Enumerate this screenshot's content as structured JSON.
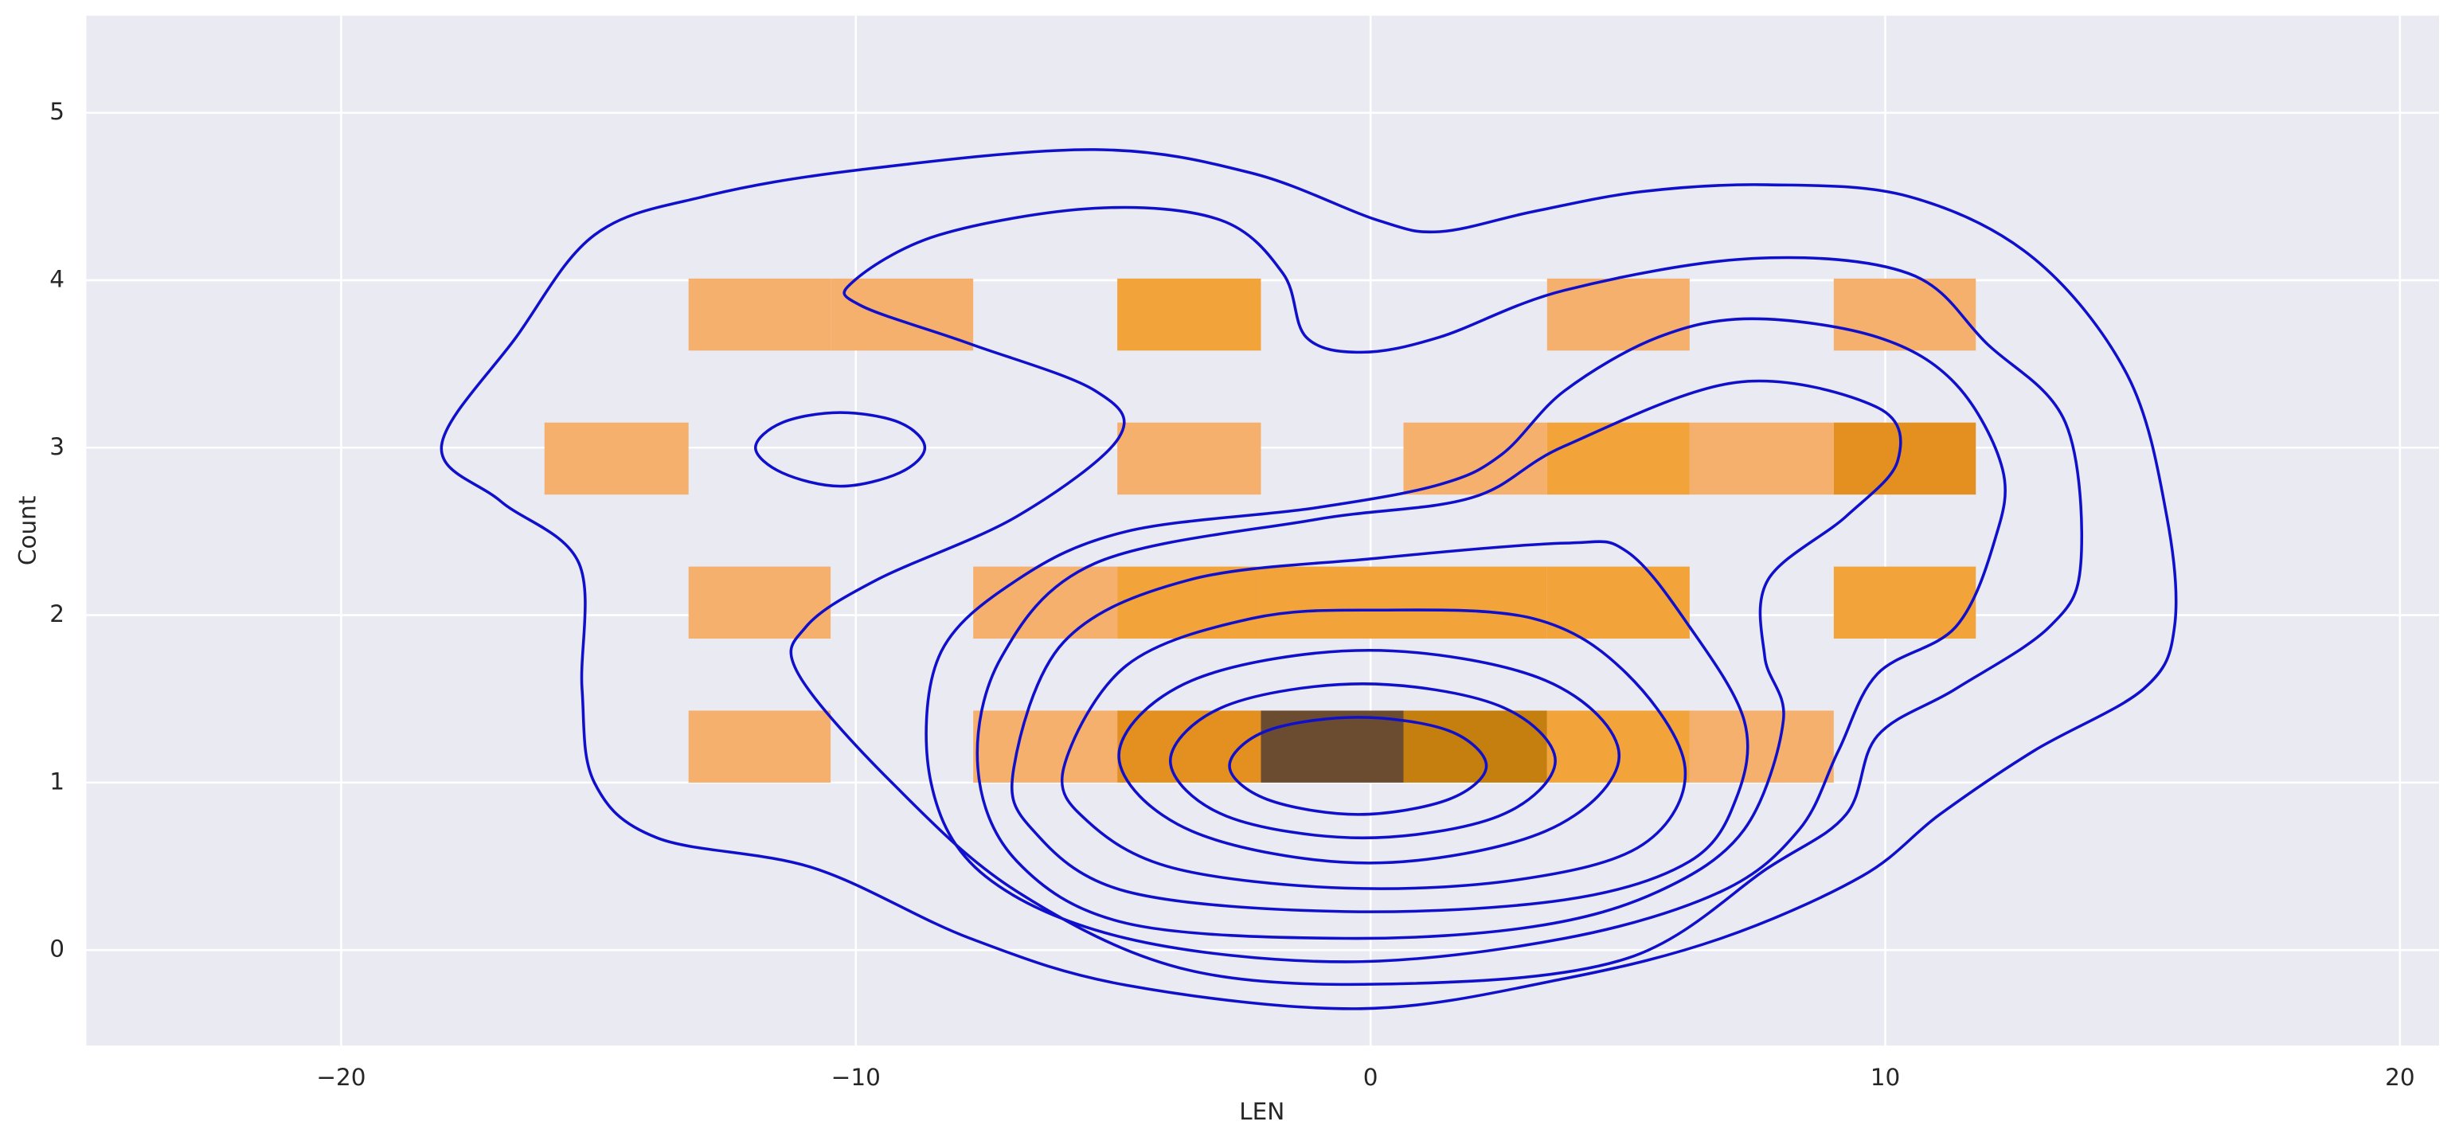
{
  "chart_data": {
    "type": "hist2d",
    "xlabel": "LEN",
    "ylabel": "Count",
    "xlim": [
      -24.95,
      20.76
    ],
    "ylim": [
      -0.57,
      5.58
    ],
    "xticks": [
      {
        "value": -20,
        "label": "−20"
      },
      {
        "value": -10,
        "label": "−10"
      },
      0,
      10,
      20
    ],
    "yticks": [
      0,
      1,
      2,
      3,
      4,
      5
    ],
    "grid": true,
    "xbins": [
      -16.05,
      -13.25,
      -10.49,
      -7.72,
      -4.92,
      -2.13,
      0.64,
      3.43,
      6.2,
      9.0,
      11.76
    ],
    "ybins": [
      1.0,
      1.43,
      1.86,
      2.29,
      2.72,
      3.15,
      3.58,
      4.01
    ],
    "counts": [
      [
        0,
        1,
        0,
        1,
        3,
        5,
        4,
        2,
        1,
        0
      ],
      [
        0,
        0,
        0,
        0,
        0,
        0,
        0,
        0,
        0,
        0
      ],
      [
        0,
        1,
        0,
        1,
        2,
        2,
        2,
        2,
        0,
        2
      ],
      [
        0,
        0,
        0,
        0,
        0,
        0,
        0,
        0,
        0,
        0
      ],
      [
        1,
        0,
        0,
        0,
        1,
        0,
        1,
        2,
        1,
        3
      ],
      [
        0,
        0,
        0,
        0,
        0,
        0,
        0,
        0,
        0,
        0
      ],
      [
        0,
        1,
        1,
        0,
        2,
        0,
        0,
        1,
        0,
        1
      ]
    ],
    "cmap": [
      "#f5b06e",
      "#f2a33a",
      "#e39020",
      "#c47f0e",
      "#6b4c30"
    ],
    "contour_color": "#1010cc",
    "contours": [
      {
        "x": [
          -18.05,
          -16.6,
          -15.08,
          -12.95,
          -9.91,
          -5.35,
          -2.31,
          0.12,
          1.34,
          3.16,
          5.29,
          7.72,
          10.46,
          12.89,
          14.71,
          15.47,
          15.62,
          15.02,
          12.89,
          11.06,
          9.54,
          6.81,
          3.77,
          -0.18,
          -4.74,
          -7.78,
          -10.82,
          -13.86,
          -15.08,
          -15.32,
          -15.38,
          -16.9
        ],
        "y": [
          3.01,
          3.66,
          4.27,
          4.5,
          4.66,
          4.78,
          4.64,
          4.36,
          4.29,
          4.41,
          4.53,
          4.57,
          4.5,
          4.13,
          3.43,
          2.59,
          1.93,
          1.56,
          1.19,
          0.81,
          0.44,
          0.07,
          -0.17,
          -0.35,
          -0.21,
          0.07,
          0.49,
          0.67,
          1.0,
          1.56,
          2.31,
          2.68
        ]
      },
      {
        "x": [
          -10.06,
          -8.39,
          -5.35,
          -2.92,
          -1.7,
          -1.25,
          -0.18,
          1.34,
          3.77,
          7.42,
          10.46,
          11.98,
          13.5,
          13.8,
          13.19,
          11.37,
          9.85,
          9.24,
          7.72,
          4.98,
          0.73,
          -3.53,
          -6.87,
          -9.3,
          -11.12,
          -10.97,
          -9.6,
          -6.87,
          -4.89,
          -5.35,
          -7.78,
          -9.91
        ],
        "y": [
          3.99,
          4.27,
          4.43,
          4.36,
          4.04,
          3.66,
          3.57,
          3.66,
          3.94,
          4.13,
          4.04,
          3.62,
          3.15,
          2.31,
          1.93,
          1.56,
          1.28,
          0.81,
          0.49,
          -0.05,
          -0.2,
          -0.12,
          0.35,
          1.0,
          1.65,
          1.93,
          2.21,
          2.59,
          3.06,
          3.34,
          3.62,
          3.85
        ]
      },
      {
        "x": [
          -11.95,
          -11.43,
          -10.3,
          -9.15,
          -8.66,
          -9.15,
          -10.3,
          -11.43
        ],
        "y": [
          3.0,
          3.15,
          3.21,
          3.15,
          3.0,
          2.85,
          2.77,
          2.85
        ]
      },
      {
        "x": [
          -8.39,
          -6.87,
          -4.74,
          -1.09,
          1.34,
          2.55,
          3.77,
          5.59,
          7.42,
          9.85,
          11.37,
          12.28,
          12.13,
          11.37,
          9.85,
          9.09,
          8.33,
          6.81,
          3.77,
          -0.49,
          -4.74,
          -7.48,
          -8.54
        ],
        "y": [
          1.75,
          2.21,
          2.5,
          2.64,
          2.78,
          2.96,
          3.34,
          3.66,
          3.77,
          3.66,
          3.38,
          2.87,
          2.45,
          1.93,
          1.65,
          1.19,
          0.72,
          0.35,
          0.07,
          -0.07,
          0.07,
          0.44,
          1.0
        ]
      },
      {
        "x": [
          -7.63,
          -7.17,
          -5.35,
          -1.09,
          1.95,
          3.77,
          7.11,
          9.85,
          10.24,
          9.24,
          7.72,
          7.66,
          8.02,
          7.26,
          5.59,
          3.16,
          -0.49,
          -4.74,
          -6.87
        ],
        "y": [
          1.09,
          1.75,
          2.31,
          2.57,
          2.7,
          3.01,
          3.39,
          3.24,
          2.92,
          2.59,
          2.21,
          1.75,
          1.37,
          0.72,
          0.35,
          0.14,
          0.07,
          0.16,
          0.53
        ]
      },
      {
        "x": [
          -6.93,
          -5.96,
          -3.53,
          0.12,
          3.77,
          4.98,
          6.2,
          7.26,
          7.11,
          6.2,
          3.77,
          -0.49,
          -4.74,
          -6.57
        ],
        "y": [
          1.09,
          1.84,
          2.21,
          2.34,
          2.43,
          2.38,
          1.93,
          1.37,
          0.91,
          0.53,
          0.3,
          0.23,
          0.35,
          0.72
        ]
      },
      {
        "x": [
          -5.96,
          -4.74,
          -2.31,
          0.12,
          3.16,
          4.98,
          6.11,
          5.29,
          2.86,
          -0.49,
          -3.83,
          -5.5
        ],
        "y": [
          1.09,
          1.7,
          1.98,
          2.03,
          1.98,
          1.65,
          1.09,
          0.63,
          0.42,
          0.37,
          0.49,
          0.77
        ]
      },
      {
        "x": [
          4.83,
          3.4,
          -0.03,
          -3.47,
          -4.89,
          -3.47,
          -0.03,
          3.4
        ],
        "y": [
          1.16,
          1.61,
          1.79,
          1.61,
          1.16,
          0.71,
          0.52,
          0.71
        ]
      },
      {
        "x": [
          3.59,
          2.49,
          -0.15,
          -2.8,
          -3.89,
          -2.8,
          -0.15,
          2.49
        ],
        "y": [
          1.13,
          1.46,
          1.59,
          1.46,
          1.13,
          0.8,
          0.67,
          0.8
        ]
      },
      {
        "x": [
          2.25,
          1.52,
          -0.24,
          -2.01,
          -2.74,
          -2.01,
          -0.24,
          1.52
        ],
        "y": [
          1.1,
          1.31,
          1.39,
          1.31,
          1.1,
          0.9,
          0.81,
          0.9
        ]
      }
    ]
  }
}
